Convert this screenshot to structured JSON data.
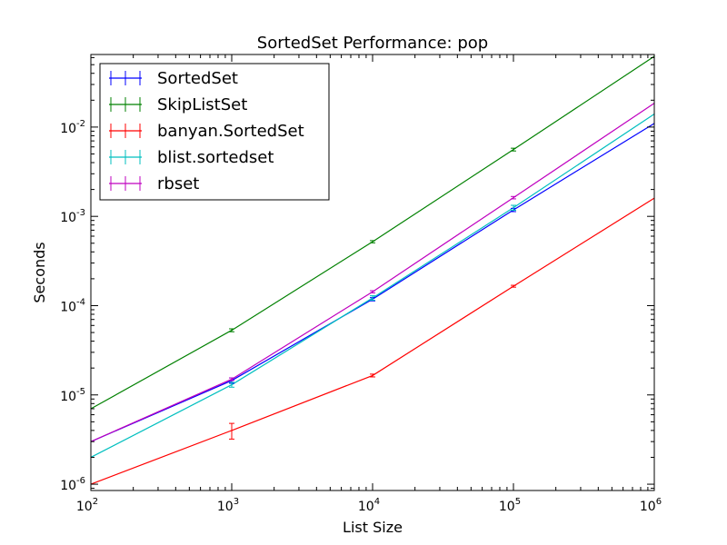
{
  "chart_data": {
    "type": "line",
    "title": "SortedSet Performance: pop",
    "xlabel": "List Size",
    "ylabel": "Seconds",
    "xscale": "log",
    "yscale": "log",
    "xlim": [
      100,
      1000000
    ],
    "ylim": [
      8.5e-07,
      0.065
    ],
    "x_ticks": [
      {
        "value": 100,
        "base": "10",
        "exp": "2"
      },
      {
        "value": 1000,
        "base": "10",
        "exp": "3"
      },
      {
        "value": 10000,
        "base": "10",
        "exp": "4"
      },
      {
        "value": 100000,
        "base": "10",
        "exp": "5"
      },
      {
        "value": 1000000,
        "base": "10",
        "exp": "6"
      }
    ],
    "y_ticks": [
      {
        "value": 1e-06,
        "base": "10",
        "exp": "-6"
      },
      {
        "value": 1e-05,
        "base": "10",
        "exp": "-5"
      },
      {
        "value": 0.0001,
        "base": "10",
        "exp": "-4"
      },
      {
        "value": 0.001,
        "base": "10",
        "exp": "-3"
      },
      {
        "value": 0.01,
        "base": "10",
        "exp": "-2"
      }
    ],
    "legend_position": "top-left",
    "x": [
      100,
      1000,
      10000,
      100000,
      1000000
    ],
    "series": [
      {
        "name": "SortedSet",
        "slug": "sortedset",
        "color": "#0000ff",
        "values": [
          3e-06,
          1.45e-05,
          0.000118,
          0.00118,
          0.011
        ],
        "errors": [
          1e-07,
          1e-06,
          5e-06,
          5e-05,
          0.0004
        ]
      },
      {
        "name": "SkipListSet",
        "slug": "skiplistset",
        "color": "#008000",
        "values": [
          7e-06,
          5.3e-05,
          0.00052,
          0.0056,
          0.062
        ],
        "errors": [
          1.5e-07,
          2e-06,
          1.5e-05,
          0.0002,
          0.001
        ]
      },
      {
        "name": "banyan.SortedSet",
        "slug": "banyan-sortedset",
        "color": "#ff0000",
        "values": [
          1e-06,
          4e-06,
          1.65e-05,
          0.000165,
          0.0016
        ],
        "errors": [
          2e-08,
          8e-07,
          6e-07,
          4e-06,
          3e-05
        ]
      },
      {
        "name": "blist.sortedset",
        "slug": "blist-sortedset",
        "color": "#00bfbf",
        "values": [
          2e-06,
          1.3e-05,
          0.000122,
          0.00125,
          0.014
        ],
        "errors": [
          5e-08,
          8e-07,
          7e-06,
          8e-05,
          0.0004
        ]
      },
      {
        "name": "rbset",
        "slug": "rbset",
        "color": "#bf00bf",
        "values": [
          3e-06,
          1.5e-05,
          0.000143,
          0.00162,
          0.0185
        ],
        "errors": [
          5e-08,
          5e-07,
          4e-06,
          5e-05,
          0.0004
        ]
      }
    ]
  }
}
